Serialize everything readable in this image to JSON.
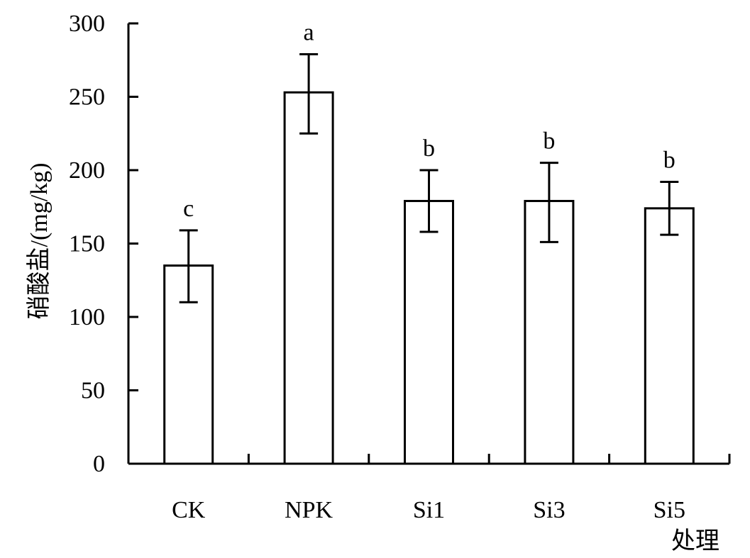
{
  "chart_data": {
    "type": "bar",
    "categories": [
      "CK",
      "NPK",
      "Si1",
      "Si3",
      "Si5"
    ],
    "values": [
      135,
      253,
      179,
      179,
      174
    ],
    "error_low": [
      110,
      225,
      158,
      151,
      156
    ],
    "error_high": [
      159,
      279,
      200,
      205,
      192
    ],
    "significance": [
      "c",
      "a",
      "b",
      "b",
      "b"
    ],
    "ylabel": "硝酸盐/(mg/kg)",
    "xlabel": "处理",
    "ylim": [
      0,
      300
    ],
    "yticks": [
      0,
      50,
      100,
      150,
      200,
      250,
      300
    ],
    "ytick_labels": [
      "0",
      "50",
      "100",
      "150",
      "200",
      "250",
      "300"
    ],
    "bar_fill": "#ffffff",
    "bar_stroke": "#000000",
    "grid": false,
    "legend": "none"
  }
}
